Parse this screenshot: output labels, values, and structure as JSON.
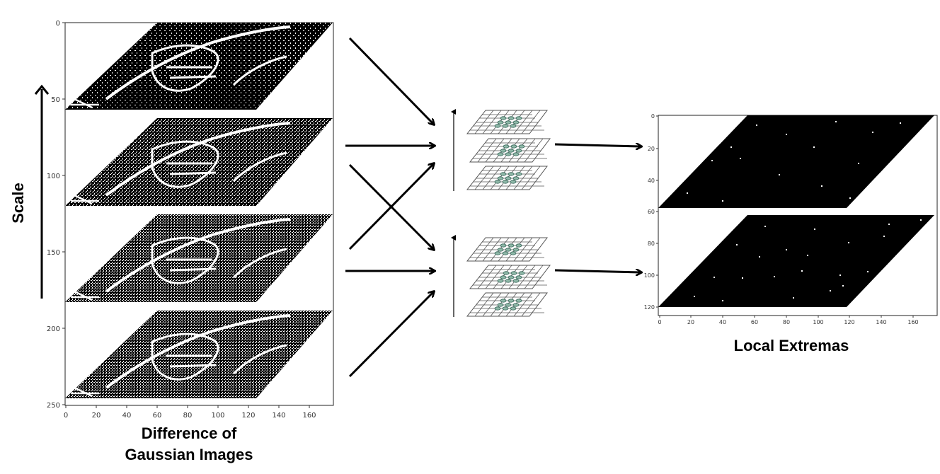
{
  "left_plot": {
    "y_ticks": [
      "0",
      "50",
      "100",
      "150",
      "200",
      "250"
    ],
    "x_ticks": [
      "0",
      "20",
      "40",
      "60",
      "80",
      "100",
      "120",
      "140",
      "160"
    ],
    "caption_line1": "Difference of",
    "caption_line2": "Gaussian Images"
  },
  "scale_label": "Scale",
  "right_plot": {
    "y_ticks": [
      "0",
      "20",
      "40",
      "60",
      "80",
      "100",
      "120"
    ],
    "x_ticks": [
      "0",
      "20",
      "40",
      "60",
      "80",
      "100",
      "120",
      "140",
      "160"
    ],
    "caption": "Local Extremas"
  },
  "colors": {
    "ink": "#000000",
    "grid": "#555555",
    "highlight": "#8fb8a8",
    "highlight_stroke": "#2f5f52"
  }
}
